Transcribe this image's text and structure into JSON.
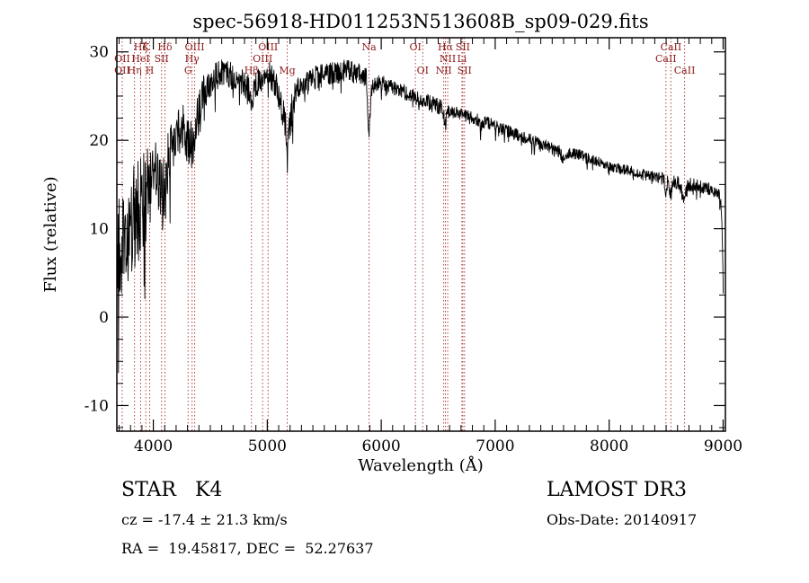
{
  "chart_data": {
    "type": "line",
    "title": "spec-56918-HD011253N513608B_sp09-029.fits",
    "xlabel": "Wavelength (Å)",
    "ylabel": "Flux (relative)",
    "xlim": [
      3680,
      9020
    ],
    "ylim": [
      -12.9,
      31.6
    ],
    "xticks": [
      4000,
      5000,
      6000,
      7000,
      8000,
      9000
    ],
    "yticks": [
      -10,
      0,
      10,
      20,
      30
    ],
    "x_minor_step": 100,
    "y_minor_step": 2.5,
    "grid": false,
    "legend": "none",
    "line_color": "#000000",
    "marker_color": "#b24444",
    "label_color": "#8b1a1a",
    "series": [
      {
        "name": "spectrum",
        "anchors": [
          3685,
          4,
          3700,
          7,
          3730,
          9,
          3760,
          10,
          3800,
          11,
          3850,
          12,
          3900,
          13,
          3935,
          13,
          3950,
          15,
          4000,
          16.5,
          4060,
          15.5,
          4102,
          14.5,
          4150,
          19,
          4200,
          20.5,
          4260,
          21.5,
          4305,
          20,
          4340,
          19.5,
          4380,
          22,
          4430,
          24.5,
          4500,
          26.5,
          4570,
          27.5,
          4650,
          27.5,
          4750,
          26.8,
          4830,
          26.2,
          4861,
          23.8,
          4890,
          26.3,
          4950,
          27,
          5010,
          27.5,
          5080,
          26,
          5130,
          24,
          5160,
          22,
          5175,
          17.8,
          5190,
          21,
          5220,
          24,
          5270,
          26,
          5350,
          26.8,
          5450,
          27.2,
          5550,
          27.6,
          5650,
          27.8,
          5750,
          27.8,
          5830,
          27.4,
          5870,
          26.8,
          5893,
          20.5,
          5915,
          26.3,
          5980,
          26.6,
          6050,
          26.2,
          6150,
          25.7,
          6250,
          25.2,
          6300,
          24.8,
          6364,
          24.4,
          6450,
          24.2,
          6540,
          23.6,
          6563,
          21.8,
          6590,
          23.4,
          6660,
          23.1,
          6750,
          22.7,
          6850,
          22.3,
          6870,
          21.5,
          6910,
          22.1,
          7000,
          21.6,
          7100,
          21.1,
          7200,
          20.6,
          7300,
          20.1,
          7400,
          19.6,
          7500,
          19.1,
          7560,
          18.9,
          7600,
          17.6,
          7650,
          18.6,
          7750,
          18.3,
          7850,
          17.8,
          7950,
          17.3,
          8050,
          16.9,
          8150,
          16.6,
          8250,
          16.3,
          8350,
          16.0,
          8430,
          15.8,
          8480,
          15.7,
          8498,
          14.2,
          8515,
          15.6,
          8542,
          13.8,
          8562,
          15.4,
          8610,
          15.2,
          8662,
          13.2,
          8685,
          15.0,
          8760,
          14.8,
          8850,
          14.7,
          8920,
          14.4,
          8960,
          14.0,
          8985,
          12.5,
          8995,
          7,
          9002,
          2.5
        ]
      }
    ],
    "noise_segments": [
      [
        3680,
        3950,
        6.5
      ],
      [
        3950,
        4150,
        4.0
      ],
      [
        4150,
        4450,
        2.8
      ],
      [
        4450,
        5150,
        1.6
      ],
      [
        5150,
        5250,
        1.8
      ],
      [
        5250,
        5950,
        1.3
      ],
      [
        5950,
        6600,
        0.9
      ],
      [
        6600,
        7600,
        0.7
      ],
      [
        7600,
        8450,
        0.6
      ],
      [
        8450,
        9020,
        0.8
      ]
    ],
    "spectral_lines": [
      3727,
      3835,
      3889,
      3934,
      3968,
      4072,
      4102,
      4305,
      4340,
      4363,
      4861,
      4959,
      5007,
      5175,
      5893,
      6300,
      6364,
      6548,
      6563,
      6583,
      6708,
      6716,
      6731,
      8498,
      8542,
      8662
    ],
    "line_labels": [
      {
        "text": "Hζ",
        "wavelength": 3889,
        "row": 1
      },
      {
        "text": "K",
        "wavelength": 3934,
        "row": 1
      },
      {
        "text": "Hδ",
        "wavelength": 4102,
        "row": 1
      },
      {
        "text": "OIII",
        "wavelength": 4363,
        "row": 1
      },
      {
        "text": "OIII",
        "wavelength": 5007,
        "row": 1
      },
      {
        "text": "Na",
        "wavelength": 5893,
        "row": 1
      },
      {
        "text": "OI",
        "wavelength": 6300,
        "row": 1
      },
      {
        "text": "Hα",
        "wavelength": 6563,
        "row": 1
      },
      {
        "text": "SII",
        "wavelength": 6716,
        "row": 1
      },
      {
        "text": "CaII",
        "wavelength": 8542,
        "row": 1
      },
      {
        "text": "OII",
        "wavelength": 3727,
        "row": 2
      },
      {
        "text": "HeI",
        "wavelength": 3889,
        "row": 2
      },
      {
        "text": "SII",
        "wavelength": 4072,
        "row": 2
      },
      {
        "text": "Hγ",
        "wavelength": 4340,
        "row": 2
      },
      {
        "text": "OIII",
        "wavelength": 4959,
        "row": 2
      },
      {
        "text": "NII",
        "wavelength": 6583,
        "row": 2
      },
      {
        "text": "Li",
        "wavelength": 6708,
        "row": 2
      },
      {
        "text": "CaII",
        "wavelength": 8498,
        "row": 2
      },
      {
        "text": "OII",
        "wavelength": 3727,
        "row": 3
      },
      {
        "text": "Hη",
        "wavelength": 3835,
        "row": 3
      },
      {
        "text": "H",
        "wavelength": 3968,
        "row": 3
      },
      {
        "text": "G",
        "wavelength": 4305,
        "row": 3
      },
      {
        "text": "Hβ",
        "wavelength": 4861,
        "row": 3
      },
      {
        "text": "Mg",
        "wavelength": 5175,
        "row": 3
      },
      {
        "text": "OI",
        "wavelength": 6364,
        "row": 3
      },
      {
        "text": "NII",
        "wavelength": 6548,
        "row": 3
      },
      {
        "text": "SII",
        "wavelength": 6731,
        "row": 3
      },
      {
        "text": "CaII",
        "wavelength": 8662,
        "row": 3
      }
    ]
  },
  "footer": {
    "class_label": "STAR   K4",
    "cz_line": "cz = -17.4 ± 21.3 km/s",
    "radec_line": "RA =  19.45817, DEC =  52.27637",
    "survey": "LAMOST DR3",
    "obs_date": "Obs-Date: 20140917"
  }
}
